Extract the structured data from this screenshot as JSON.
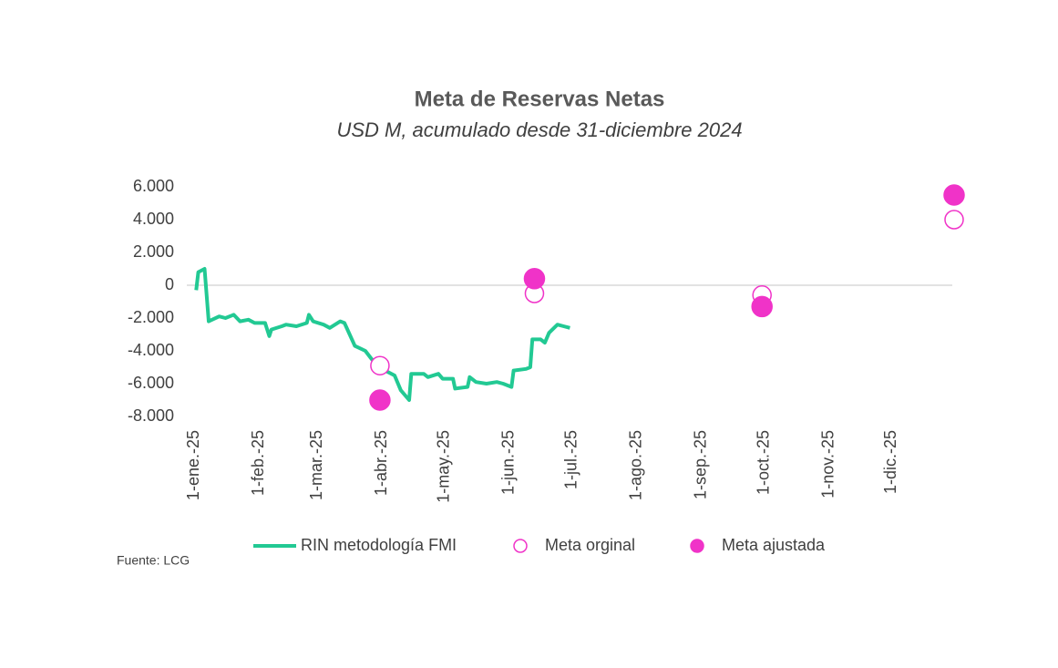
{
  "chart_data": {
    "type": "line",
    "title": "Meta de Reservas Netas",
    "subtitle": "USD M, acumulado desde 31-diciembre 2024",
    "source": "Fuente: LCG",
    "xlim": [
      "2025-01-01",
      "2025-12-31"
    ],
    "xticks": [
      {
        "value": "2025-01-01",
        "label": "1-ene.-25"
      },
      {
        "value": "2025-02-01",
        "label": "1-feb.-25"
      },
      {
        "value": "2025-03-01",
        "label": "1-mar.-25"
      },
      {
        "value": "2025-04-01",
        "label": "1-abr.-25"
      },
      {
        "value": "2025-05-01",
        "label": "1-may.-25"
      },
      {
        "value": "2025-06-01",
        "label": "1-jun.-25"
      },
      {
        "value": "2025-07-01",
        "label": "1-jul.-25"
      },
      {
        "value": "2025-08-01",
        "label": "1-ago.-25"
      },
      {
        "value": "2025-09-01",
        "label": "1-sep.-25"
      },
      {
        "value": "2025-10-01",
        "label": "1-oct.-25"
      },
      {
        "value": "2025-11-01",
        "label": "1-nov.-25"
      },
      {
        "value": "2025-12-01",
        "label": "1-dic.-25"
      }
    ],
    "ylim": [
      -8000,
      6000
    ],
    "yticks": [
      {
        "value": -8000,
        "label": "-8.000"
      },
      {
        "value": -6000,
        "label": "-6.000"
      },
      {
        "value": -4000,
        "label": "-4.000"
      },
      {
        "value": -2000,
        "label": "-2.000"
      },
      0,
      {
        "value": 2000,
        "label": "2.000"
      },
      {
        "value": 4000,
        "label": "4.000"
      },
      {
        "value": 6000,
        "label": "6.000"
      }
    ],
    "legend": "bottom",
    "series": [
      {
        "name": "RIN metodología FMI",
        "type": "line",
        "color": "#22c993",
        "x": [
          "2025-01-02",
          "2025-01-03",
          "2025-01-06",
          "2025-01-08",
          "2025-01-13",
          "2025-01-16",
          "2025-01-20",
          "2025-01-23",
          "2025-01-27",
          "2025-01-30",
          "2025-02-04",
          "2025-02-06",
          "2025-02-07",
          "2025-02-12",
          "2025-02-14",
          "2025-02-19",
          "2025-02-24",
          "2025-02-25",
          "2025-02-27",
          "2025-03-04",
          "2025-03-07",
          "2025-03-12",
          "2025-03-14",
          "2025-03-19",
          "2025-03-24",
          "2025-03-27",
          "2025-04-01",
          "2025-04-07",
          "2025-04-10",
          "2025-04-14",
          "2025-04-15",
          "2025-04-21",
          "2025-04-23",
          "2025-04-28",
          "2025-04-30",
          "2025-05-05",
          "2025-05-06",
          "2025-05-12",
          "2025-05-13",
          "2025-05-16",
          "2025-05-21",
          "2025-05-26",
          "2025-05-29",
          "2025-06-02",
          "2025-06-03",
          "2025-06-09",
          "2025-06-11",
          "2025-06-12",
          "2025-06-16",
          "2025-06-18",
          "2025-06-20",
          "2025-06-24",
          "2025-06-27",
          "2025-06-30"
        ],
        "values": [
          -300,
          800,
          1000,
          -2200,
          -1900,
          -2000,
          -1800,
          -2200,
          -2100,
          -2300,
          -2300,
          -3100,
          -2700,
          -2500,
          -2400,
          -2500,
          -2300,
          -1800,
          -2200,
          -2400,
          -2600,
          -2200,
          -2300,
          -3700,
          -4000,
          -4500,
          -5100,
          -5500,
          -6400,
          -7000,
          -5400,
          -5400,
          -5600,
          -5400,
          -5700,
          -5700,
          -6300,
          -6200,
          -5600,
          -5900,
          -6000,
          -5900,
          -6000,
          -6200,
          -5200,
          -5100,
          -5000,
          -3300,
          -3300,
          -3500,
          -2900,
          -2400,
          -2500,
          -2600
        ]
      },
      {
        "name": "Meta orginal",
        "type": "scatter",
        "marker": "open",
        "color": "#f033c8",
        "x": [
          "2025-03-31",
          "2025-06-13",
          "2025-09-30",
          "2025-12-31"
        ],
        "values": [
          -4900,
          -500,
          -600,
          4000
        ]
      },
      {
        "name": "Meta ajustada",
        "type": "scatter",
        "marker": "filled",
        "color": "#f033c8",
        "x": [
          "2025-03-31",
          "2025-06-13",
          "2025-09-30",
          "2025-12-31"
        ],
        "values": [
          -7000,
          400,
          -1300,
          5500
        ]
      }
    ]
  }
}
